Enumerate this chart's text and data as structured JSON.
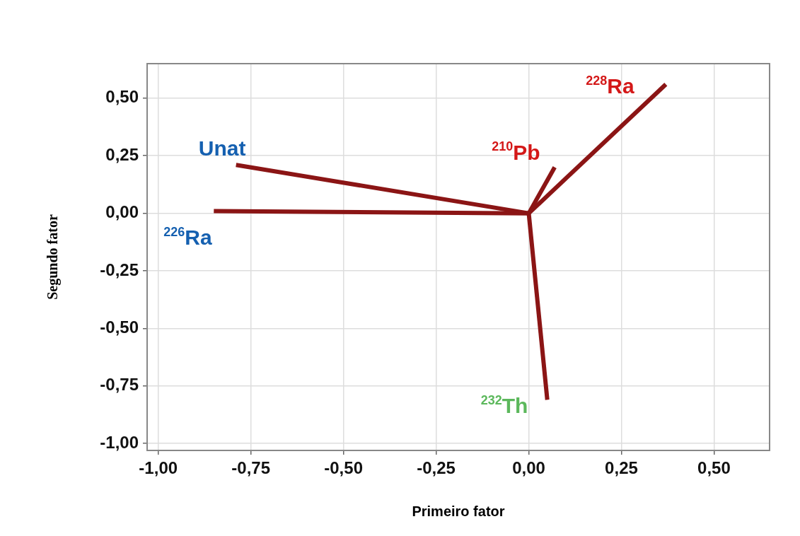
{
  "chart_data": {
    "type": "line",
    "xlabel": "Primeiro fator",
    "ylabel": "Segundo fator",
    "series": [
      {
        "name": "Unat",
        "color": "#8b1515",
        "x": [
          0,
          -0.79
        ],
        "values": [
          0,
          0.21
        ]
      },
      {
        "name": "$^{226}$Ra",
        "color": "#8b1515",
        "x": [
          0,
          -0.85
        ],
        "values": [
          0,
          0.01
        ]
      },
      {
        "name": "$^{210}$Pb",
        "color": "#8b1515",
        "x": [
          0,
          0.07
        ],
        "values": [
          0,
          0.2
        ]
      },
      {
        "name": "$^{228}$Ra",
        "color": "#8b1515",
        "x": [
          0,
          0.37
        ],
        "values": [
          0,
          0.56
        ]
      },
      {
        "name": "$^{232}$Th",
        "color": "#8b1515",
        "x": [
          0,
          0.05
        ],
        "values": [
          0,
          -0.81
        ]
      }
    ],
    "xlim": [
      -1.03,
      0.65
    ],
    "ylim": [
      -1.03,
      0.65
    ],
    "xticks": [
      {
        "value": -1,
        "label": "-1,00"
      },
      {
        "value": -0.75,
        "label": "-0,75"
      },
      {
        "value": -0.5,
        "label": "-0,50"
      },
      {
        "value": -0.25,
        "label": "-0,25"
      },
      {
        "value": 0,
        "label": "0,00"
      },
      {
        "value": 0.25,
        "label": "0,25"
      },
      {
        "value": 0.5,
        "label": "0,50"
      }
    ],
    "yticks": [
      {
        "value": -1,
        "label": "-1,00"
      },
      {
        "value": -0.75,
        "label": "-0,75"
      },
      {
        "value": -0.5,
        "label": "-0,50"
      },
      {
        "value": -0.25,
        "label": "-0,25"
      },
      {
        "value": 0,
        "label": "0,00"
      },
      {
        "value": 0.25,
        "label": "0,25"
      },
      {
        "value": 0.5,
        "label": "0,50"
      }
    ],
    "grid": true,
    "legend": false,
    "marker": "none",
    "line_style": "solid"
  }
}
